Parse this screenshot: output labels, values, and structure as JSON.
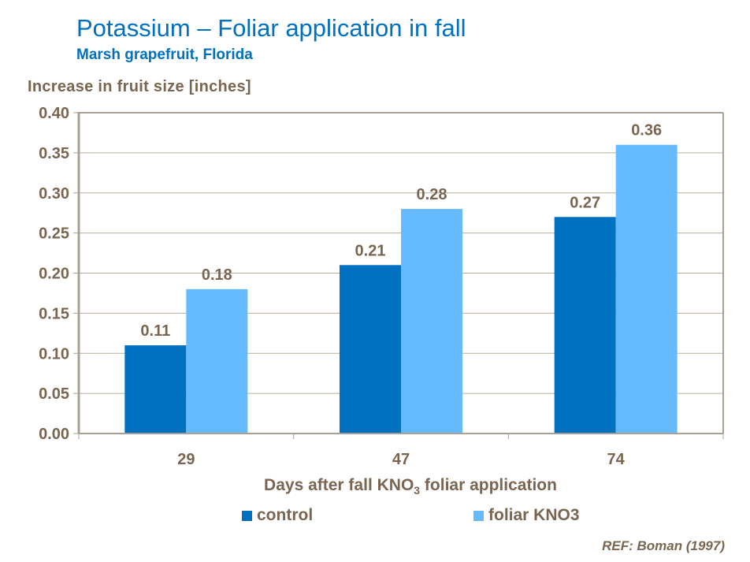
{
  "title": "Potassium – Foliar application in fall",
  "subtitle": "Marsh grapefruit, Florida",
  "reference": "REF: Boman (1997)",
  "chart_data": {
    "type": "bar",
    "title": "Potassium – Foliar application in fall",
    "ylabel": "Increase in fruit size [inches]",
    "xlabel": {
      "before": "Days after fall KNO",
      "sub": "3",
      "after": " foliar application"
    },
    "categories": [
      "29",
      "47",
      "74"
    ],
    "ylim": [
      0,
      0.4
    ],
    "yticks": [
      "0.00",
      "0.05",
      "0.10",
      "0.15",
      "0.20",
      "0.25",
      "0.30",
      "0.35",
      "0.40"
    ],
    "grid": true,
    "legend_position": "bottom",
    "series": [
      {
        "name": "control",
        "color": "#0070c0",
        "values": [
          0.11,
          0.21,
          0.27
        ],
        "labels": [
          "0.11",
          "0.21",
          "0.27"
        ]
      },
      {
        "name": "foliar KNO3",
        "color": "#66bbff",
        "values": [
          0.18,
          0.28,
          0.36
        ],
        "labels": [
          "0.18",
          "0.28",
          "0.36"
        ]
      }
    ]
  }
}
